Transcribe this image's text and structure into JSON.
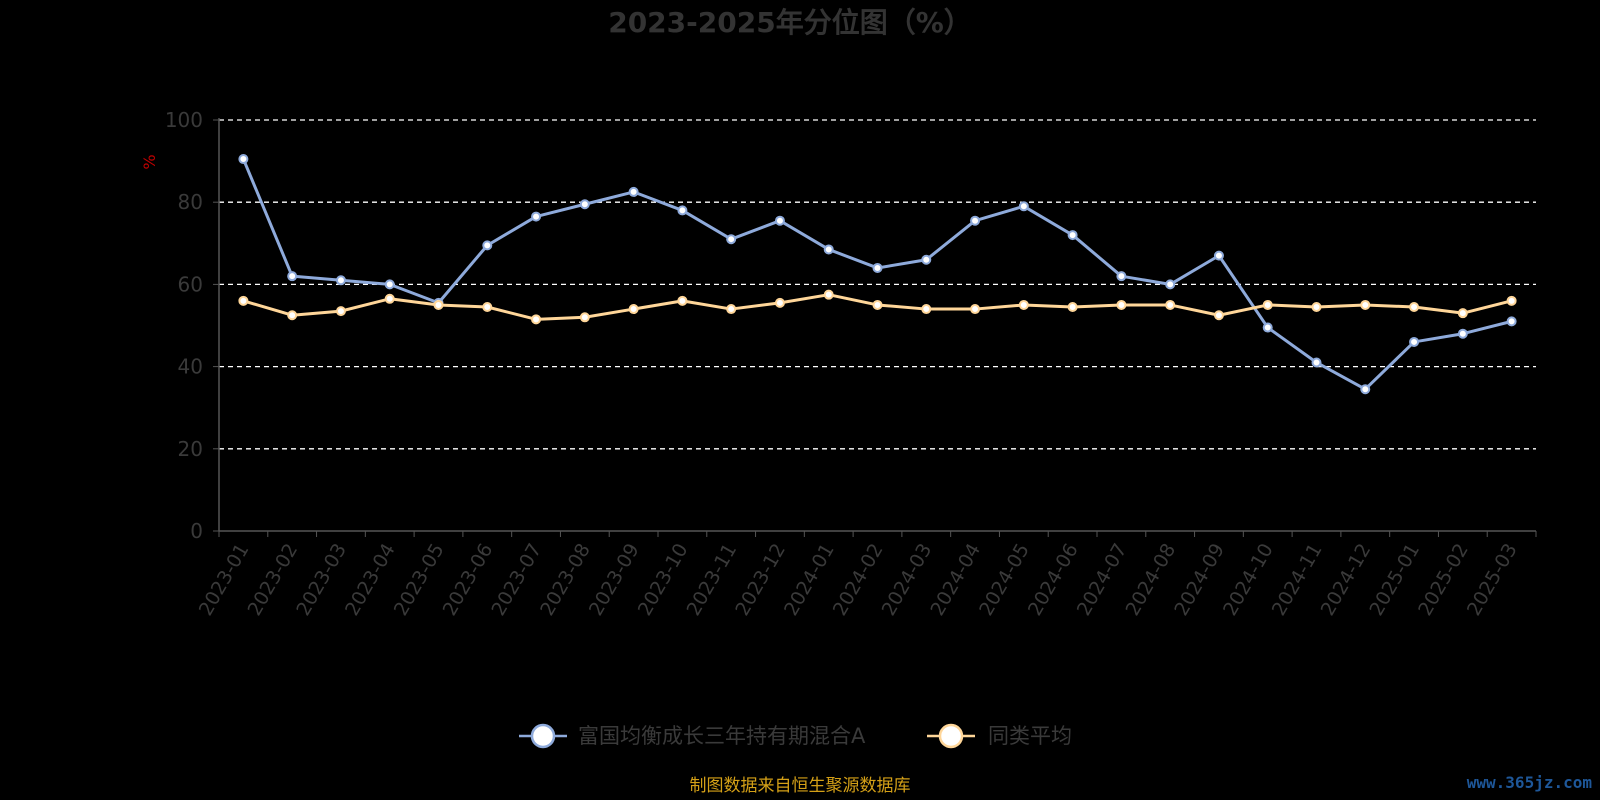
{
  "chart_data": {
    "type": "line",
    "title": "2023-2025年分位图（%）",
    "ylabel": "%",
    "ylim": [
      0,
      100
    ],
    "yticks": [
      0,
      20,
      40,
      60,
      80,
      100
    ],
    "grid": true,
    "legend_position": "bottom",
    "x": [
      "2023-01",
      "2023-02",
      "2023-03",
      "2023-04",
      "2023-05",
      "2023-06",
      "2023-07",
      "2023-08",
      "2023-09",
      "2023-10",
      "2023-11",
      "2023-12",
      "2024-01",
      "2024-02",
      "2024-03",
      "2024-04",
      "2024-05",
      "2024-06",
      "2024-07",
      "2024-08",
      "2024-09",
      "2024-10",
      "2024-11",
      "2024-12",
      "2025-01",
      "2025-02",
      "2025-03"
    ],
    "series": [
      {
        "name": "富国均衡成长三年持有期混合A",
        "color": "#8eaadb",
        "values": [
          90.5,
          62,
          61,
          60,
          55.5,
          69.5,
          76.5,
          79.5,
          82.5,
          78,
          71,
          75.5,
          68.5,
          64,
          66,
          75.5,
          79,
          72,
          62,
          60,
          67,
          49.5,
          41,
          34.5,
          46,
          48,
          51
        ]
      },
      {
        "name": "同类平均",
        "color": "#ffd699",
        "values": [
          56,
          52.5,
          53.5,
          56.5,
          55,
          54.5,
          51.5,
          52,
          54,
          56,
          54,
          55.5,
          57.5,
          55,
          54,
          54,
          55,
          54.5,
          55,
          55,
          52.5,
          55,
          54.5,
          55,
          54.5,
          53,
          56
        ]
      }
    ]
  },
  "footer": {
    "source": "制图数据来自恒生聚源数据库",
    "watermark": "www.365jz.com"
  }
}
